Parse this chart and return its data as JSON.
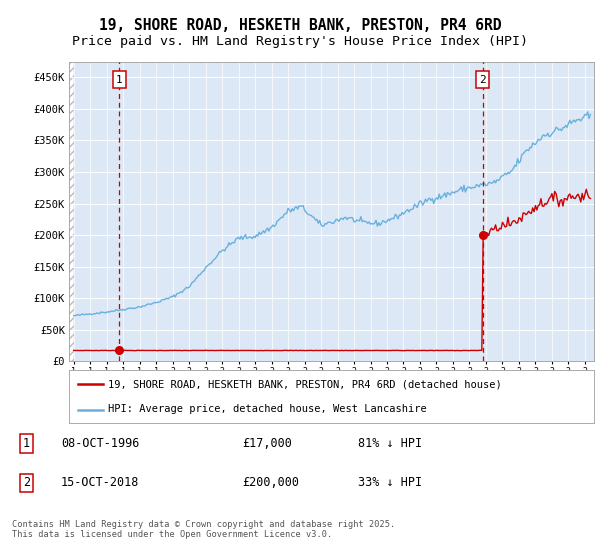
{
  "title": "19, SHORE ROAD, HESKETH BANK, PRESTON, PR4 6RD",
  "subtitle": "Price paid vs. HM Land Registry's House Price Index (HPI)",
  "ylim": [
    0,
    475000
  ],
  "yticks": [
    0,
    50000,
    100000,
    150000,
    200000,
    250000,
    300000,
    350000,
    400000,
    450000
  ],
  "ytick_labels": [
    "£0",
    "£50K",
    "£100K",
    "£150K",
    "£200K",
    "£250K",
    "£300K",
    "£350K",
    "£400K",
    "£450K"
  ],
  "sale1_date": 1996.78,
  "sale1_price": 17000,
  "sale1_label": "1",
  "sale2_date": 2018.79,
  "sale2_price": 200000,
  "sale2_label": "2",
  "hpi_color": "#6ab0de",
  "sale_color": "#cc0000",
  "bg_color": "#dce8f5",
  "grid_color": "#ffffff",
  "legend_label_sale": "19, SHORE ROAD, HESKETH BANK, PRESTON, PR4 6RD (detached house)",
  "legend_label_hpi": "HPI: Average price, detached house, West Lancashire",
  "annotation1_date": "08-OCT-1996",
  "annotation1_price": "£17,000",
  "annotation1_hpi": "81% ↓ HPI",
  "annotation2_date": "15-OCT-2018",
  "annotation2_price": "£200,000",
  "annotation2_hpi": "33% ↓ HPI",
  "footer": "Contains HM Land Registry data © Crown copyright and database right 2025.\nThis data is licensed under the Open Government Licence v3.0.",
  "title_fontsize": 10.5,
  "subtitle_fontsize": 9.5,
  "hpi_key_points": {
    "1994.0": 72000,
    "1995.0": 75000,
    "1996.0": 78000,
    "1997.0": 82000,
    "1998.0": 86000,
    "1999.0": 93000,
    "2000.0": 102000,
    "2001.0": 118000,
    "2002.0": 148000,
    "2003.0": 175000,
    "2004.0": 195000,
    "2005.0": 198000,
    "2006.0": 212000,
    "2007.0": 238000,
    "2007.8": 245000,
    "2008.5": 228000,
    "2009.0": 215000,
    "2009.8": 222000,
    "2010.5": 228000,
    "2011.5": 220000,
    "2012.5": 218000,
    "2013.5": 228000,
    "2014.5": 242000,
    "2015.5": 256000,
    "2016.5": 263000,
    "2017.5": 272000,
    "2018.5": 278000,
    "2019.5": 283000,
    "2020.5": 300000,
    "2021.5": 335000,
    "2022.5": 358000,
    "2023.5": 368000,
    "2024.5": 382000,
    "2025.3": 388000
  },
  "sale_key_points_after": {
    "2018.83": 200000,
    "2019.5": 210000,
    "2020.0": 215000,
    "2020.5": 218000,
    "2021.0": 225000,
    "2021.5": 235000,
    "2022.0": 245000,
    "2022.5": 252000,
    "2023.0": 258000,
    "2023.5": 255000,
    "2024.0": 260000,
    "2024.5": 262000,
    "2025.3": 265000
  }
}
